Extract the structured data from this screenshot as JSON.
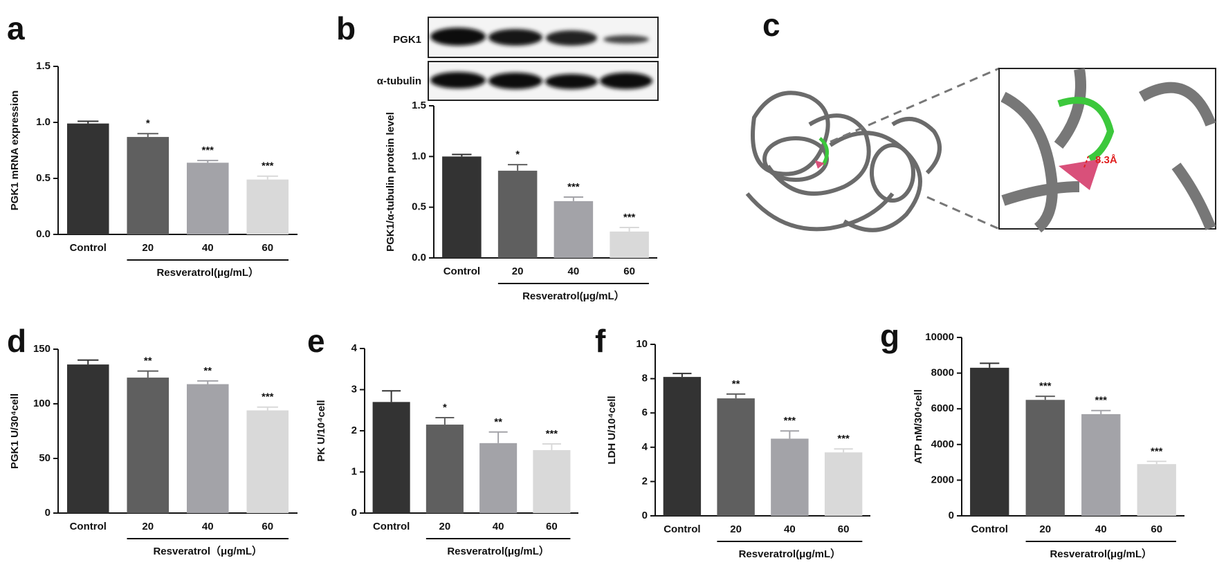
{
  "chart_data": [
    {
      "type": "bar",
      "panel": "a",
      "ylabel": "PGK1 mRNA expression",
      "categories": [
        "Control",
        "20",
        "40",
        "60"
      ],
      "group_label": "Resveratrol(μg/mL）",
      "values": [
        0.99,
        0.87,
        0.64,
        0.49
      ],
      "errors": [
        0.02,
        0.03,
        0.02,
        0.03
      ],
      "annotations": [
        null,
        "*",
        "***",
        "***"
      ],
      "colors": [
        "#333333",
        "#5f5f5f",
        "#a3a3a8",
        "#d9d9d9"
      ],
      "ylim": [
        0,
        1.5
      ],
      "yticks": [
        {
          "value": 0,
          "label": "0.0"
        },
        {
          "value": 0.5,
          "label": "0.5"
        },
        {
          "value": 1,
          "label": "1.0"
        },
        {
          "value": 1.5,
          "label": "1.5"
        }
      ]
    },
    {
      "type": "bar",
      "panel": "b",
      "ylabel": "PGK1/α-tubulin protein level",
      "categories": [
        "Control",
        "20",
        "40",
        "60"
      ],
      "group_label": "Resveratrol(μg/mL）",
      "values": [
        1.0,
        0.86,
        0.56,
        0.26
      ],
      "errors": [
        0.02,
        0.06,
        0.04,
        0.04
      ],
      "annotations": [
        null,
        "*",
        "***",
        "***"
      ],
      "colors": [
        "#333333",
        "#5f5f5f",
        "#a3a3a8",
        "#d9d9d9"
      ],
      "ylim": [
        0,
        1.5
      ],
      "yticks": [
        {
          "value": 0,
          "label": "0.0"
        },
        {
          "value": 0.5,
          "label": "0.5"
        },
        {
          "value": 1,
          "label": "1.0"
        },
        {
          "value": 1.5,
          "label": "1.5"
        }
      ]
    },
    {
      "type": "bar",
      "panel": "d",
      "ylabel": "PGK1 U/30⁴cell",
      "categories": [
        "Control",
        "20",
        "40",
        "60"
      ],
      "group_label": "Resveratrol（μg/mL）",
      "values": [
        136,
        124,
        118,
        94
      ],
      "errors": [
        4,
        6,
        3,
        3
      ],
      "annotations": [
        null,
        "**",
        "**",
        "***"
      ],
      "colors": [
        "#333333",
        "#5f5f5f",
        "#a3a3a8",
        "#d9d9d9"
      ],
      "ylim": [
        0,
        150
      ],
      "yticks": [
        0,
        50,
        100,
        150
      ]
    },
    {
      "type": "bar",
      "panel": "e",
      "ylabel": "PK U/10⁴cell",
      "categories": [
        "Control",
        "20",
        "40",
        "60"
      ],
      "group_label": "Resveratrol(μg/mL）",
      "values": [
        2.7,
        2.15,
        1.7,
        1.53
      ],
      "errors": [
        0.27,
        0.17,
        0.27,
        0.15
      ],
      "annotations": [
        null,
        "*",
        "**",
        "***"
      ],
      "colors": [
        "#333333",
        "#5f5f5f",
        "#a3a3a8",
        "#d9d9d9"
      ],
      "ylim": [
        0,
        4
      ],
      "yticks": [
        0,
        1,
        2,
        3,
        4
      ]
    },
    {
      "type": "bar",
      "panel": "f",
      "ylabel": "LDH U/10⁴cell",
      "categories": [
        "Control",
        "20",
        "40",
        "60"
      ],
      "group_label": "Resveratrol(μg/mL）",
      "values": [
        8.1,
        6.85,
        4.5,
        3.7
      ],
      "errors": [
        0.2,
        0.25,
        0.45,
        0.2
      ],
      "annotations": [
        null,
        "**",
        "***",
        "***"
      ],
      "colors": [
        "#333333",
        "#5f5f5f",
        "#a3a3a8",
        "#d9d9d9"
      ],
      "ylim": [
        0,
        10
      ],
      "yticks": [
        0,
        2,
        4,
        6,
        8,
        10
      ]
    },
    {
      "type": "bar",
      "panel": "g",
      "ylabel": "ATP nM/30⁴cell",
      "categories": [
        "Control",
        "20",
        "40",
        "60"
      ],
      "group_label": "Resveratrol(μg/mL）",
      "values": [
        8300,
        6500,
        5700,
        2900
      ],
      "errors": [
        250,
        200,
        200,
        150
      ],
      "annotations": [
        null,
        "***",
        "***",
        "***"
      ],
      "colors": [
        "#333333",
        "#5f5f5f",
        "#a3a3a8",
        "#d9d9d9"
      ],
      "ylim": [
        0,
        10000
      ],
      "yticks": [
        0,
        2000,
        4000,
        6000,
        8000,
        10000
      ]
    }
  ],
  "blot": {
    "labels": [
      "PGK1",
      "α-tubulin"
    ]
  },
  "structure": {
    "panel": "c",
    "annotation": "8.3Å"
  }
}
